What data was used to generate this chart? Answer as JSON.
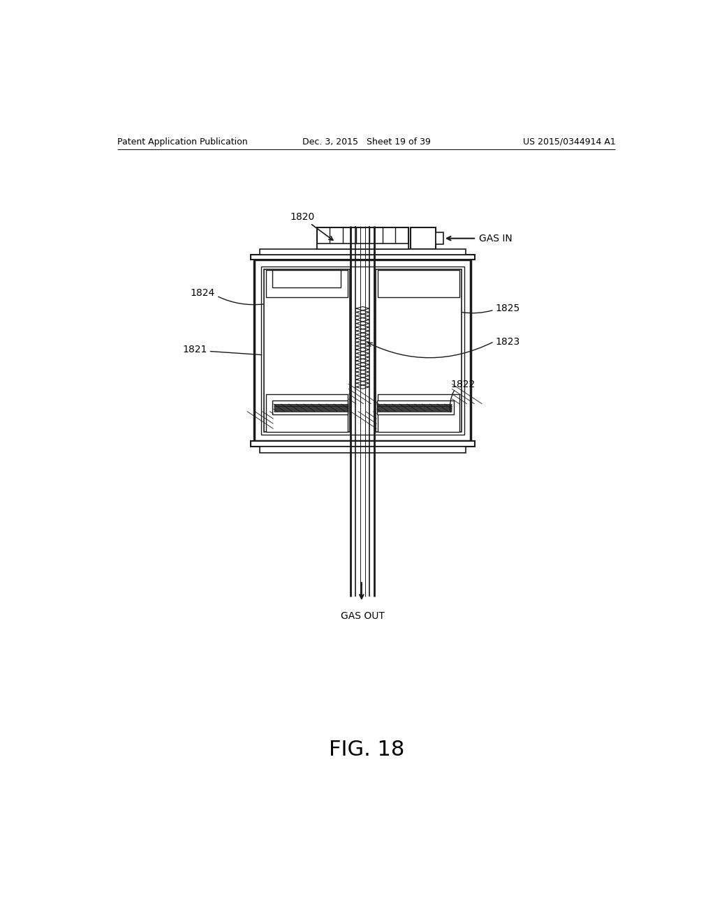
{
  "bg_color": "#ffffff",
  "line_color": "#1a1a1a",
  "header_left": "Patent Application Publication",
  "header_mid": "Dec. 3, 2015   Sheet 19 of 39",
  "header_right": "US 2015/0344914 A1",
  "fig_label": "FIG. 18",
  "label_1820": "1820",
  "label_1821": "1821",
  "label_1822": "1822",
  "label_1823": "1823",
  "label_1824": "1824",
  "label_1825": "1825",
  "gas_in": "GAS IN",
  "gas_out": "GAS OUT"
}
